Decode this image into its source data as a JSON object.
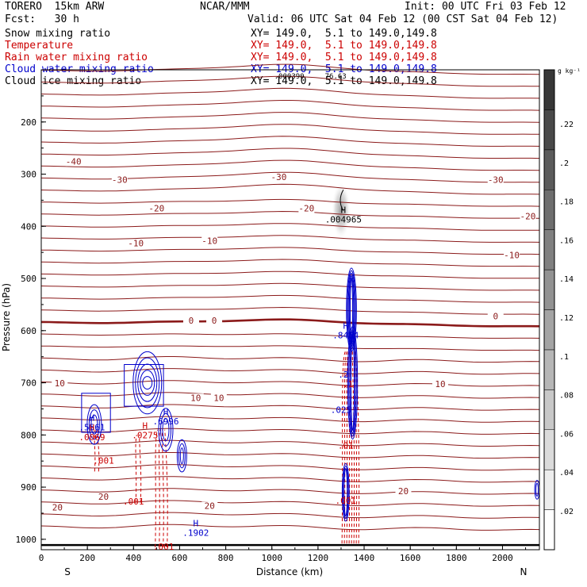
{
  "header": {
    "model": "TORERO  15km ARW",
    "forecast": "Fcst:   30 h",
    "center": "NCAR/MMM",
    "init": "Init: 00 UTC Fri 03 Feb 12",
    "valid": "Valid: 06 UTC Sat 04 Feb 12 (00 CST Sat 04 Feb 12)"
  },
  "fields": [
    {
      "name": "Snow mixing ratio",
      "xy": "XY= 149.0,  5.1 to 149.0,149.8",
      "color": "#000000"
    },
    {
      "name": "Temperature",
      "xy": "XY= 149.0,  5.1 to 149.0,149.8",
      "color": "#cc0000"
    },
    {
      "name": "Rain water mixing ratio",
      "xy": "XY= 149.0,  5.1 to 149.0,149.8",
      "color": "#cc0000"
    },
    {
      "name": "Cloud water mixing ratio",
      "xy": "XY= 149.0,  5.1 to 149.0,149.8",
      "color": "#0000cc"
    },
    {
      "name": "Cloud ice mixing ratio",
      "xy": "XY= 149.0,  5.1 to 149.0,149.8",
      "color": "#000000"
    }
  ],
  "chart_data": {
    "type": "cross-section",
    "xlabel": "Distance (km)",
    "ylabel": "Pressure (hPa)",
    "xlim": [
      0,
      2160
    ],
    "ylim": [
      1020,
      100
    ],
    "xticks": [
      0,
      200,
      400,
      600,
      800,
      1000,
      1200,
      1400,
      1600,
      1800,
      2000
    ],
    "yticks": [
      200,
      300,
      400,
      500,
      600,
      700,
      800,
      900,
      1000
    ],
    "left_end": "S",
    "right_end": "N",
    "temperature_labels": [
      {
        "text": "-40",
        "x": 140,
        "p": 280
      },
      {
        "text": "-30",
        "x": 340,
        "p": 315
      },
      {
        "text": "-30",
        "x": 1030,
        "p": 310
      },
      {
        "text": "-30",
        "x": 1970,
        "p": 315
      },
      {
        "text": "-20",
        "x": 500,
        "p": 370
      },
      {
        "text": "-20",
        "x": 1150,
        "p": 370
      },
      {
        "text": "-20",
        "x": 2110,
        "p": 385
      },
      {
        "text": "-10",
        "x": 410,
        "p": 437
      },
      {
        "text": "-10",
        "x": 730,
        "p": 432
      },
      {
        "text": "-10",
        "x": 2040,
        "p": 460
      },
      {
        "text": "0",
        "x": 650,
        "p": 585
      },
      {
        "text": "0",
        "x": 750,
        "p": 585
      },
      {
        "text": "0",
        "x": 1970,
        "p": 577
      },
      {
        "text": "10",
        "x": 80,
        "p": 705
      },
      {
        "text": "10",
        "x": 670,
        "p": 733
      },
      {
        "text": "10",
        "x": 770,
        "p": 733
      },
      {
        "text": "10",
        "x": 1730,
        "p": 707
      },
      {
        "text": "20",
        "x": 70,
        "p": 943
      },
      {
        "text": "20",
        "x": 270,
        "p": 923
      },
      {
        "text": "20",
        "x": 730,
        "p": 940
      },
      {
        "text": "20",
        "x": 1570,
        "p": 912
      }
    ],
    "extrema_labels": [
      {
        "mark": "H",
        "value": ".004965",
        "x": 1310,
        "p": 390,
        "color": "#000000"
      },
      {
        "mark": "H",
        "value": ".8484",
        "x": 1320,
        "p": 612,
        "color": "#0000cc"
      },
      {
        "mark": "H",
        "value": ".5561",
        "x": 220,
        "p": 788,
        "color": "#0000cc"
      },
      {
        "mark": "H",
        "value": ".6996",
        "x": 540,
        "p": 777,
        "color": "#0000cc"
      },
      {
        "mark": "H",
        "value": ".1902",
        "x": 670,
        "p": 990,
        "color": "#0000cc"
      },
      {
        "mark": "H",
        "value": ".0069",
        "x": 220,
        "p": 807,
        "color": "#cc0000"
      },
      {
        "mark": "H",
        "value": ".0275",
        "x": 450,
        "p": 803,
        "color": "#cc0000"
      }
    ],
    "rain_labels": [
      {
        "text": ".001",
        "x": 270,
        "p": 855
      },
      {
        "text": ".001",
        "x": 400,
        "p": 933
      },
      {
        "text": ".001",
        "x": 530,
        "p": 1020
      },
      {
        "text": ".001",
        "x": 1320,
        "p": 932
      },
      {
        "text": ".01",
        "x": 1320,
        "p": 826
      },
      {
        "text": ".1",
        "x": 1330,
        "p": 708
      }
    ],
    "cloud_labels": [
      {
        "text": ".025",
        "x": 1300,
        "p": 758
      },
      {
        "text": ".2",
        "x": 1310,
        "p": 690
      }
    ],
    "header_snippet": {
      "text": ".000390",
      "extra": "76.63"
    },
    "colorbar": {
      "unit": "g kg⁻¹",
      "ticks": [
        ".22",
        ".2",
        ".18",
        ".16",
        ".14",
        ".12",
        ".1",
        ".08",
        ".06",
        ".04",
        ".02"
      ],
      "min": 0,
      "max": 0.24
    }
  }
}
